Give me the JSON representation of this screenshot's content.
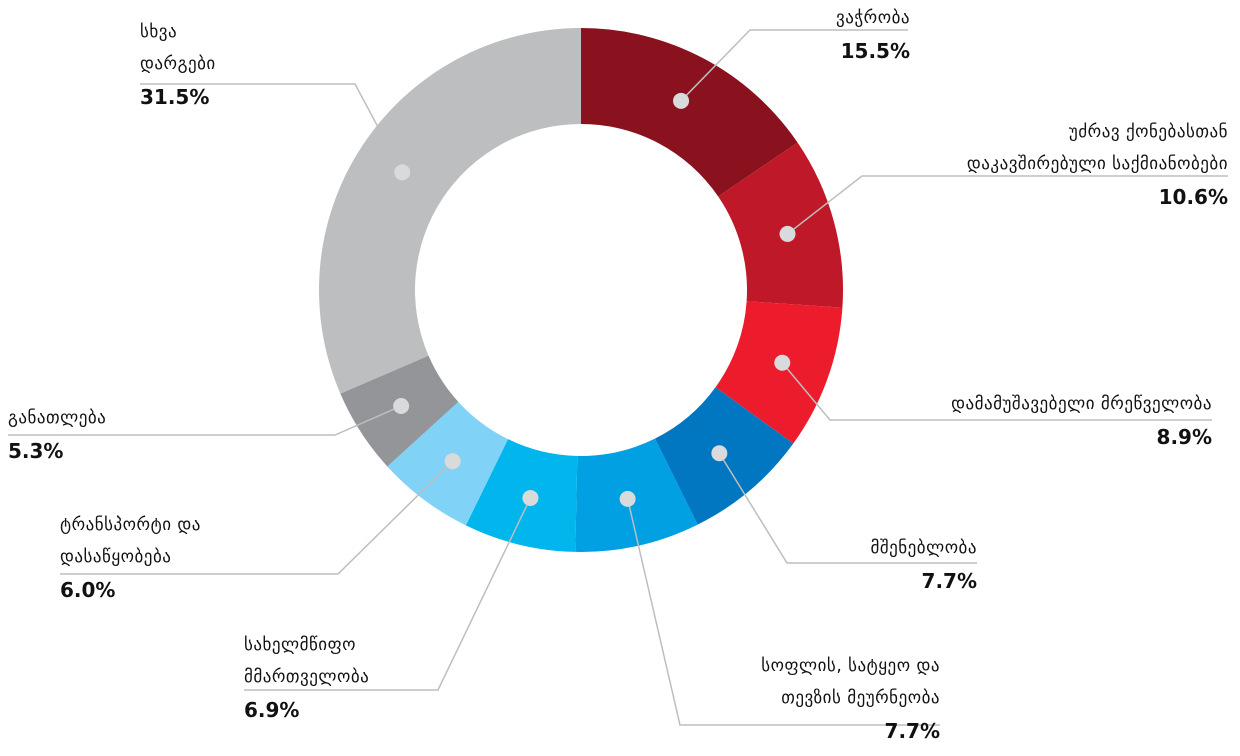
{
  "chart_data": {
    "type": "donut",
    "categories": [
      "ვაჭრობა",
      "უძრავ ქონებასთან\nდაკავშირებული საქმიანობები",
      "დამამუშავებელი მრეწველობა",
      "მშენებლობა",
      "სოფლის, სატყეო და\nთევზის მეურნეობა",
      "სახელმწიფო\nმმართველობა",
      "ტრანსპორტი და\nდასაწყობება",
      "განათლება",
      "სხვა\nდარგები"
    ],
    "values": [
      15.5,
      10.6,
      8.9,
      7.7,
      7.7,
      6.9,
      6.0,
      5.3,
      31.5
    ],
    "value_labels": [
      "15.5%",
      "10.6%",
      "8.9%",
      "7.7%",
      "7.7%",
      "6.9%",
      "6.0%",
      "5.3%",
      "31.5%"
    ],
    "colors": [
      "#8a121f",
      "#be1829",
      "#ec1c2d",
      "#0077c0",
      "#00a0e3",
      "#00b6ed",
      "#80d3f7",
      "#939598",
      "#bcbec0"
    ]
  }
}
